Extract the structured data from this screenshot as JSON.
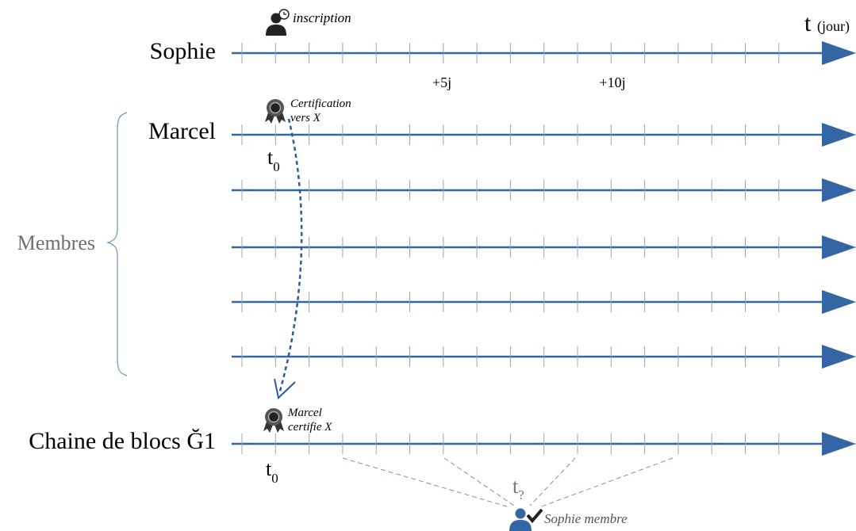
{
  "timeline_labels": {
    "sophie": "Sophie",
    "marcel": "Marcel",
    "members_group": "Membres",
    "blockchain": "Chaine de blocs Ğ1"
  },
  "time_axis": {
    "symbol": "t",
    "unit": "(jour)",
    "marks": [
      "+5j",
      "+10j"
    ]
  },
  "events": {
    "inscription": "inscription",
    "certification_line1": "Certification",
    "certification_line2": "vers X",
    "marcel_certifie_line1": "Marcel",
    "marcel_certifie_line2": "certifie X",
    "sophie_membre": "Sophie membre"
  },
  "time_markers": {
    "t0_base": "t",
    "t0_sub": "0",
    "tq_base": "t",
    "tq_sub": "?"
  },
  "colors": {
    "axis": "#3465a4",
    "tick": "#8fa6c8",
    "member_icon": "#3465a4",
    "grey_text": "#6e6e6e",
    "dashed_guides": "#7f93b5"
  },
  "icons": {
    "user_clock": "user-clock-icon",
    "certificate": "certificate-icon",
    "user_check": "user-check-icon"
  }
}
